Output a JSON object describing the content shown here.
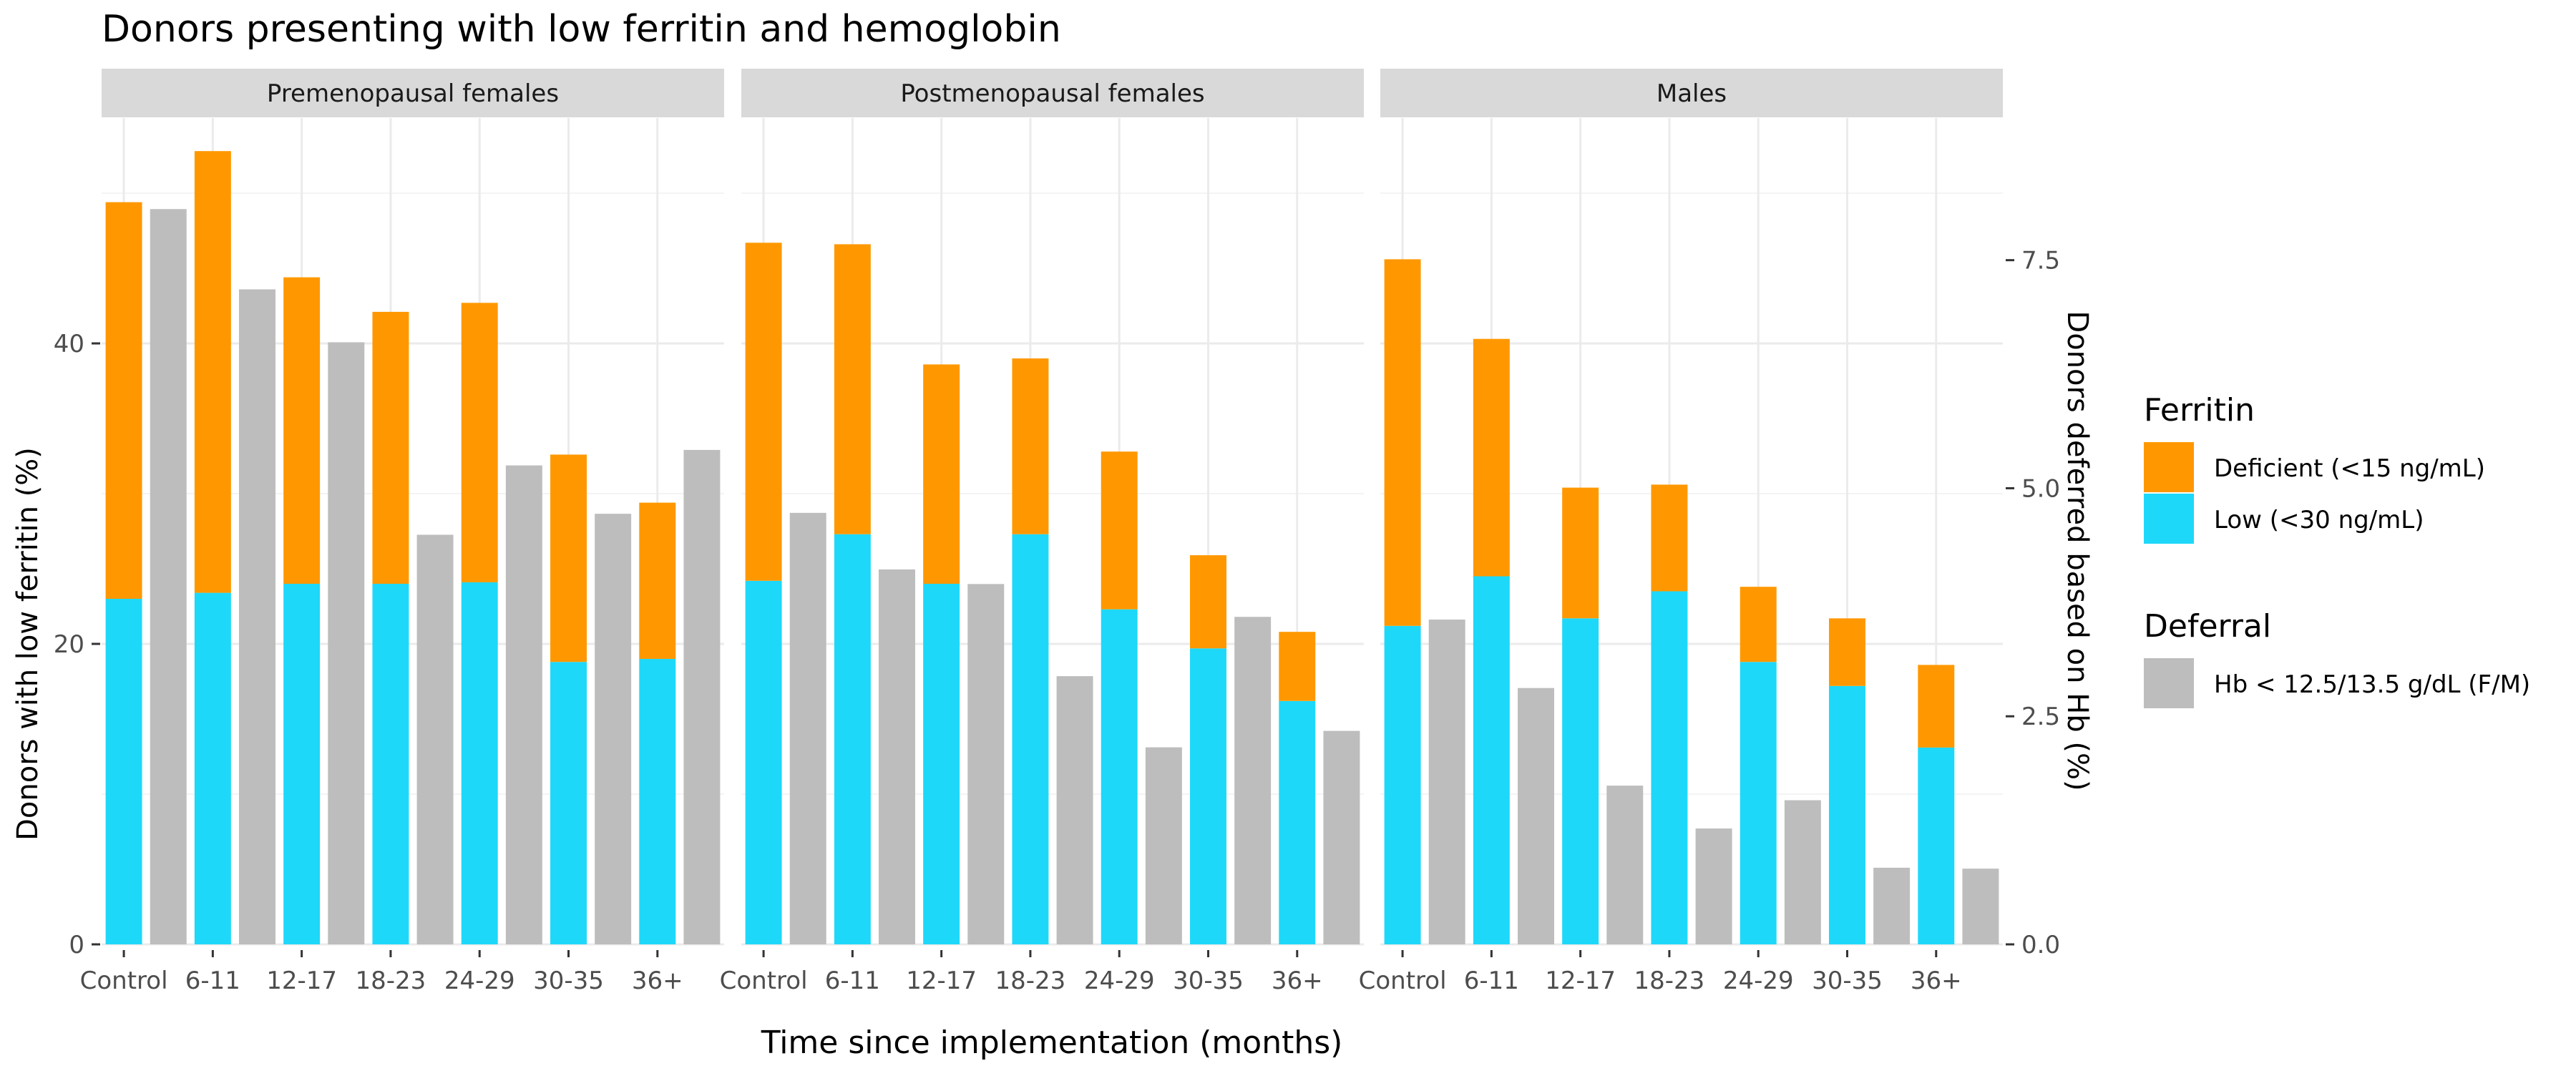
{
  "chart_data": {
    "type": "bar",
    "title": "Donors presenting with low ferritin and hemoglobin",
    "xlabel": "Time since implementation (months)",
    "ylabel": "Donors with low ferritin (%)",
    "y2label": "Donors deferred based on Hb (%)",
    "ylim": [
      0,
      55
    ],
    "y_ticks": [
      0,
      20,
      40
    ],
    "y2lim": [
      0,
      9.058
    ],
    "y2_ticks": [
      "0.0",
      "2.5",
      "5.0",
      "7.5"
    ],
    "grid": true,
    "categories": [
      "Control",
      "6-11",
      "12-17",
      "18-23",
      "24-29",
      "30-35",
      "36+"
    ],
    "panels": [
      {
        "name": "Premenopausal females",
        "low_ferritin": [
          23.0,
          23.4,
          24.0,
          24.0,
          24.1,
          18.8,
          19.0
        ],
        "deficient_ferritin": [
          26.4,
          29.4,
          20.4,
          18.1,
          18.6,
          13.8,
          10.4
        ],
        "hb_deferral": [
          8.06,
          7.18,
          6.6,
          4.49,
          5.25,
          4.72,
          5.42
        ]
      },
      {
        "name": "Postmenopausal females",
        "low_ferritin": [
          24.2,
          27.3,
          24.0,
          27.3,
          22.3,
          19.7,
          16.2
        ],
        "deficient_ferritin": [
          22.5,
          19.3,
          14.6,
          11.7,
          10.5,
          6.2,
          4.6
        ],
        "hb_deferral": [
          4.73,
          4.11,
          3.95,
          2.94,
          2.16,
          3.59,
          2.34
        ]
      },
      {
        "name": "Males",
        "low_ferritin": [
          21.2,
          24.5,
          21.7,
          23.5,
          18.8,
          17.2,
          13.1
        ],
        "deficient_ferritin": [
          24.4,
          15.8,
          8.7,
          7.1,
          5.0,
          4.5,
          5.5
        ],
        "hb_deferral": [
          3.56,
          2.81,
          1.74,
          1.27,
          1.58,
          0.84,
          0.83
        ]
      }
    ],
    "legend": {
      "placement": "right",
      "ferritin_title": "Ferritin",
      "ferritin_items": [
        {
          "label": "Deficient (<15 ng/mL)",
          "color": "#FF9800"
        },
        {
          "label": "Low (<30 ng/mL)",
          "color": "#1ED8FA"
        }
      ],
      "deferral_title": "Deferral",
      "deferral_items": [
        {
          "label": "Hb < 12.5/13.5 g/dL (F/M)",
          "color": "#BDBDBD"
        }
      ]
    }
  }
}
